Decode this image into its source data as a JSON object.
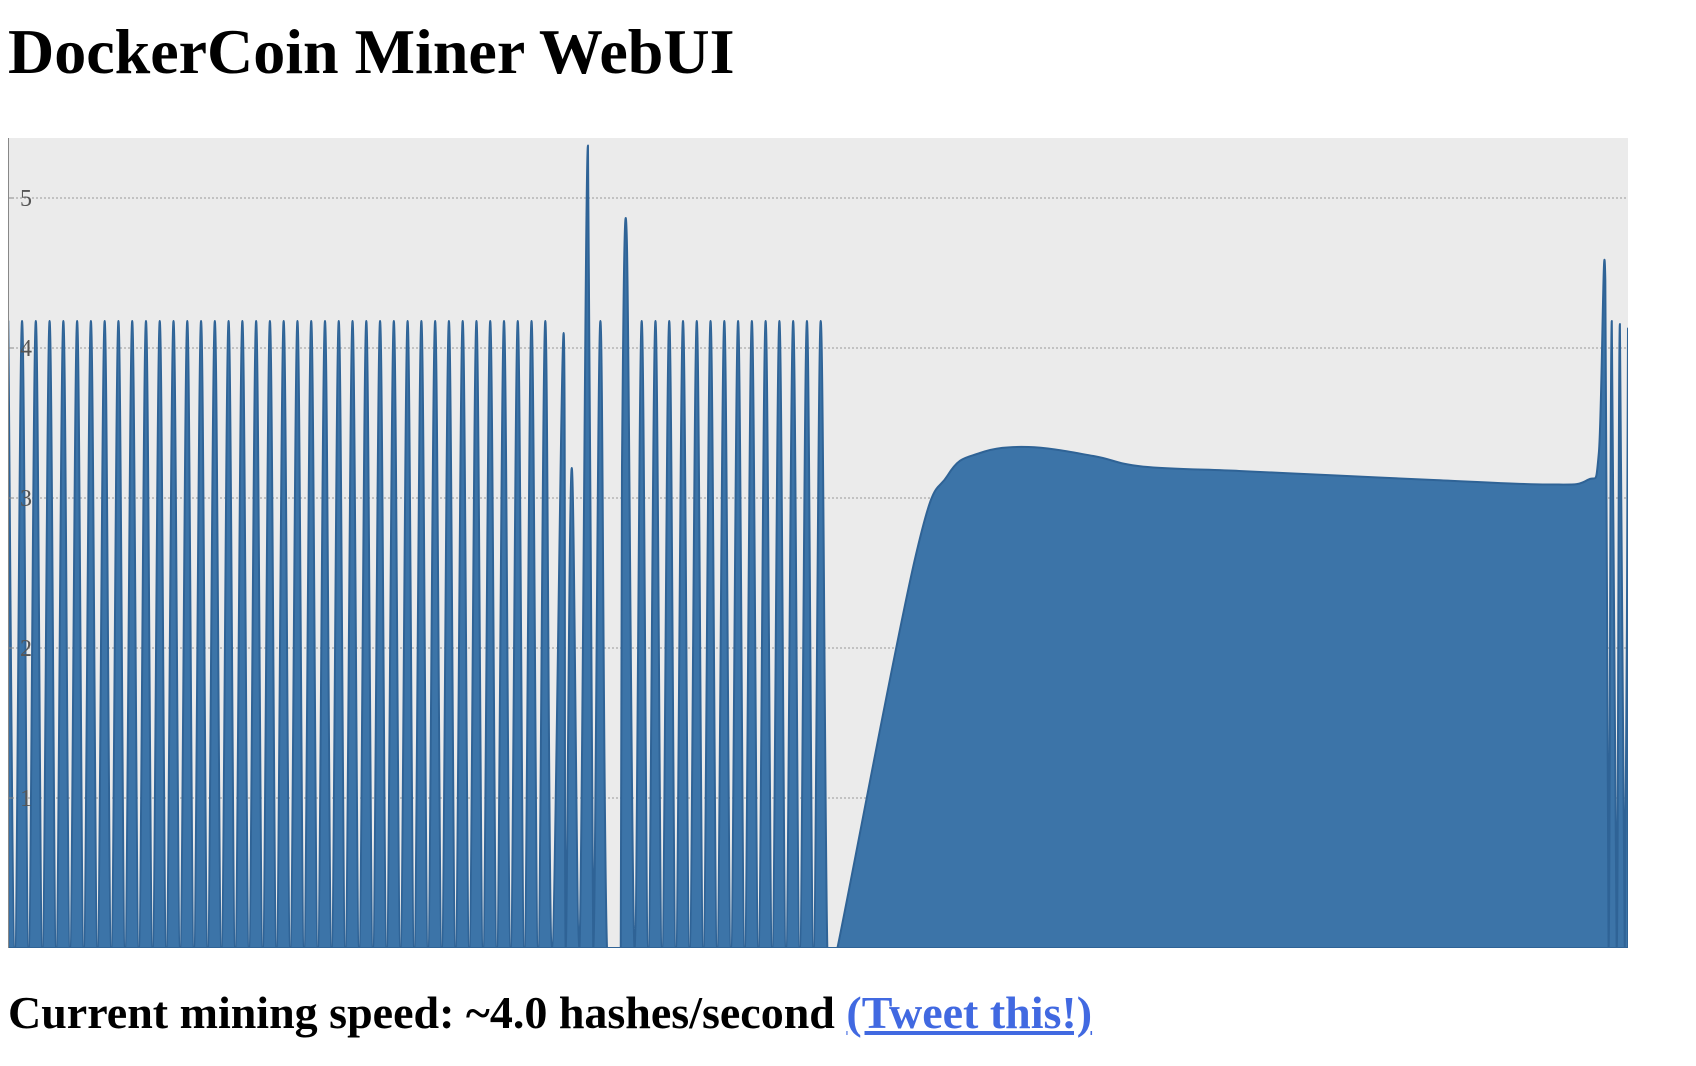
{
  "page": {
    "title": "DockerCoin Miner WebUI"
  },
  "status": {
    "prefix": "Current mining speed: ~",
    "speed": "4.0",
    "unit_suffix": " hashes/second",
    "tweet_link": "(Tweet this!)"
  },
  "colors": {
    "series": "#3c74a8",
    "plot_background": "#ebebeb",
    "gridline": "#999999",
    "link": "#4169e1"
  },
  "chart_data": {
    "type": "area",
    "title": "",
    "xlabel": "",
    "ylabel": "",
    "ylim": [
      0,
      5.4
    ],
    "yticks": [
      1,
      2,
      3,
      4,
      5
    ],
    "grid": true,
    "series": [
      {
        "name": "",
        "oscillation_segment": {
          "x_range": [
            0,
            0.51
          ],
          "cycles": 60,
          "high": 4.18,
          "low": 0.0,
          "spikes": [
            {
              "x": 0.343,
              "value": 4.1
            },
            {
              "x": 0.348,
              "value": 3.2
            },
            {
              "x": 0.358,
              "value": 5.35
            },
            {
              "x": 0.37,
              "value": 4.9
            },
            {
              "x": 0.376,
              "value": 4.05
            },
            {
              "x": 0.379,
              "value": 3.2
            },
            {
              "x": 0.382,
              "value": 4.72
            }
          ]
        },
        "points": [
          [
            0.51,
            0.0
          ],
          [
            0.512,
            0.0
          ],
          [
            0.56,
            2.6
          ],
          [
            0.58,
            3.15
          ],
          [
            0.6,
            3.3
          ],
          [
            0.63,
            3.34
          ],
          [
            0.67,
            3.28
          ],
          [
            0.7,
            3.21
          ],
          [
            0.76,
            3.18
          ],
          [
            0.82,
            3.15
          ],
          [
            0.88,
            3.12
          ],
          [
            0.95,
            3.09
          ],
          [
            0.975,
            3.12
          ],
          [
            0.982,
            3.3
          ],
          [
            0.986,
            4.45
          ],
          [
            0.988,
            0.0
          ],
          [
            0.99,
            4.18
          ],
          [
            0.993,
            0.0
          ],
          [
            0.995,
            4.16
          ],
          [
            0.998,
            0.0
          ],
          [
            1.0,
            4.13
          ]
        ]
      }
    ]
  }
}
